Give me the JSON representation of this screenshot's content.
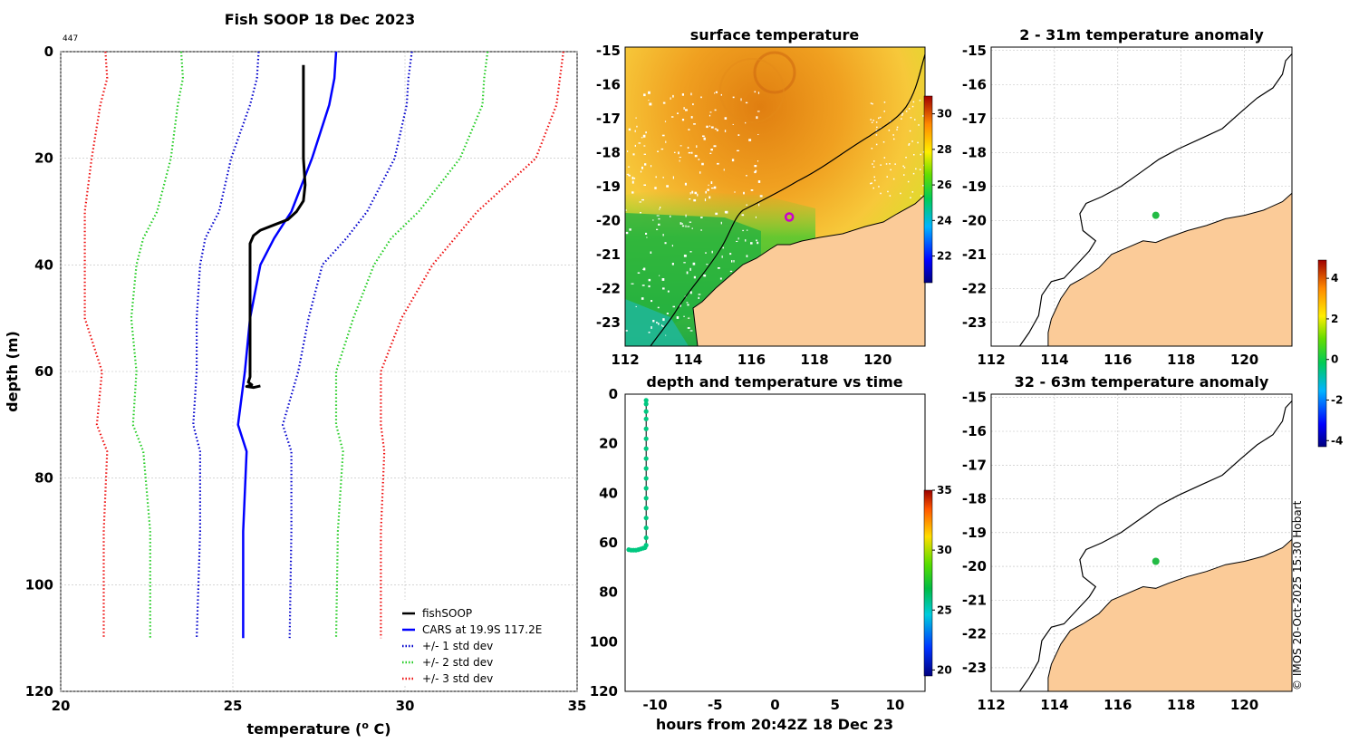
{
  "stamp": "© IMOS 20-Oct-2025 15:30 Hobart",
  "colors": {
    "obs": "#000000",
    "cars": "#0000ff",
    "sd1": "#0000cc",
    "sd2": "#22cc22",
    "sd3": "#ee1111",
    "land": "#fbcb98",
    "marker": "#cc00cc"
  },
  "chart_data": [
    {
      "id": "profile",
      "type": "line",
      "title": "Fish SOOP 18 Dec 2023",
      "corner_label": "447",
      "xlabel": "temperature (",
      "xlabel_sup": "o",
      "xlabel_end": " C)",
      "ylabel": "depth (m)",
      "xlim": [
        20,
        35
      ],
      "ylim": [
        0,
        120
      ],
      "y_reversed": true,
      "xticks": [
        20,
        25,
        30,
        35
      ],
      "yticks": [
        0,
        20,
        40,
        60,
        80,
        100,
        120
      ],
      "series": [
        {
          "name": "fishSOOP",
          "style": "solid",
          "color": "#000000",
          "width": 3,
          "points": [
            [
              27.05,
              2.5
            ],
            [
              27.05,
              10
            ],
            [
              27.05,
              20
            ],
            [
              27.1,
              25
            ],
            [
              27.05,
              28
            ],
            [
              26.85,
              30
            ],
            [
              26.6,
              31.5
            ],
            [
              26.2,
              32.5
            ],
            [
              25.8,
              33.5
            ],
            [
              25.6,
              34.5
            ],
            [
              25.5,
              36
            ],
            [
              25.5,
              40
            ],
            [
              25.5,
              50
            ],
            [
              25.5,
              61
            ],
            [
              25.45,
              62
            ],
            [
              25.55,
              62.5
            ],
            [
              25.4,
              62.8
            ],
            [
              25.6,
              63
            ],
            [
              25.8,
              62.7
            ]
          ]
        },
        {
          "name": "CARS at 19.9S 117.2E",
          "style": "solid",
          "color": "#0000ff",
          "width": 2.5,
          "points": [
            [
              28,
              0
            ],
            [
              27.95,
              5
            ],
            [
              27.8,
              10
            ],
            [
              27.3,
              20
            ],
            [
              26.7,
              30
            ],
            [
              26.2,
              35
            ],
            [
              25.8,
              40
            ],
            [
              25.5,
              50
            ],
            [
              25.35,
              60
            ],
            [
              25.15,
              70
            ],
            [
              25.4,
              75
            ],
            [
              25.3,
              90
            ],
            [
              25.3,
              110
            ]
          ]
        },
        {
          "name": "+/- 1 std dev",
          "style": "dotted",
          "color": "#0000cc",
          "width": 2.2,
          "points": [
            [
              25.75,
              0
            ],
            [
              25.7,
              5
            ],
            [
              25.5,
              10
            ],
            [
              24.95,
              20
            ],
            [
              24.6,
              30
            ],
            [
              24.2,
              35
            ],
            [
              24.05,
              40
            ],
            [
              23.95,
              50
            ],
            [
              23.95,
              60
            ],
            [
              23.85,
              70
            ],
            [
              24.05,
              75
            ],
            [
              24.05,
              90
            ],
            [
              23.95,
              110
            ]
          ]
        },
        {
          "name": "+/- 1 std dev",
          "style": "dotted",
          "color": "#0000cc",
          "width": 2.2,
          "points": [
            [
              30.2,
              0
            ],
            [
              30.1,
              5
            ],
            [
              30.05,
              10
            ],
            [
              29.7,
              20
            ],
            [
              28.9,
              30
            ],
            [
              28.3,
              35
            ],
            [
              27.6,
              40
            ],
            [
              27.2,
              50
            ],
            [
              26.9,
              60
            ],
            [
              26.45,
              70
            ],
            [
              26.7,
              75
            ],
            [
              26.7,
              90
            ],
            [
              26.65,
              110
            ]
          ]
        },
        {
          "name": "+/- 2 std dev",
          "style": "dotted",
          "color": "#22cc22",
          "width": 2.2,
          "points": [
            [
              23.5,
              0
            ],
            [
              23.55,
              5
            ],
            [
              23.4,
              10
            ],
            [
              23.2,
              20
            ],
            [
              22.8,
              30
            ],
            [
              22.4,
              35
            ],
            [
              22.2,
              40
            ],
            [
              22.05,
              50
            ],
            [
              22.2,
              60
            ],
            [
              22.1,
              70
            ],
            [
              22.4,
              75
            ],
            [
              22.6,
              90
            ],
            [
              22.6,
              110
            ]
          ]
        },
        {
          "name": "+/- 2 std dev",
          "style": "dotted",
          "color": "#22cc22",
          "width": 2.2,
          "points": [
            [
              32.4,
              0
            ],
            [
              32.3,
              5
            ],
            [
              32.25,
              10
            ],
            [
              31.6,
              20
            ],
            [
              30.4,
              30
            ],
            [
              29.6,
              35
            ],
            [
              29.1,
              40
            ],
            [
              28.5,
              50
            ],
            [
              28,
              60
            ],
            [
              28,
              70
            ],
            [
              28.2,
              75
            ],
            [
              28.05,
              90
            ],
            [
              28.0,
              110
            ]
          ]
        },
        {
          "name": "+/- 3 std dev",
          "style": "dotted",
          "color": "#ee1111",
          "width": 2.2,
          "points": [
            [
              21.3,
              0
            ],
            [
              21.35,
              5
            ],
            [
              21.15,
              10
            ],
            [
              20.9,
              20
            ],
            [
              20.7,
              30
            ],
            [
              20.7,
              40
            ],
            [
              20.7,
              50
            ],
            [
              21.2,
              60
            ],
            [
              21.05,
              70
            ],
            [
              21.35,
              75
            ],
            [
              21.25,
              90
            ],
            [
              21.25,
              110
            ]
          ]
        },
        {
          "name": "+/- 3 std dev",
          "style": "dotted",
          "color": "#ee1111",
          "width": 2.2,
          "points": [
            [
              34.6,
              0
            ],
            [
              34.5,
              5
            ],
            [
              34.4,
              10
            ],
            [
              33.8,
              20
            ],
            [
              32.1,
              30
            ],
            [
              30.8,
              40
            ],
            [
              29.9,
              50
            ],
            [
              29.3,
              60
            ],
            [
              29.3,
              70
            ],
            [
              29.4,
              75
            ],
            [
              29.3,
              90
            ],
            [
              29.3,
              110
            ]
          ]
        }
      ],
      "legend": [
        {
          "label": "fishSOOP",
          "color": "#000000",
          "style": "solid"
        },
        {
          "label": "CARS at 19.9S 117.2E",
          "color": "#0000ff",
          "style": "solid"
        },
        {
          "label": "+/- 1 std dev",
          "color": "#0000cc",
          "style": "dotted"
        },
        {
          "label": "+/- 2 std dev",
          "color": "#22cc22",
          "style": "dotted"
        },
        {
          "label": "+/- 3 std dev",
          "color": "#ee1111",
          "style": "dotted"
        }
      ],
      "legend_position": "bottom-right"
    },
    {
      "id": "sst",
      "type": "heatmap",
      "title": "surface temperature",
      "xlim": [
        112,
        121.5
      ],
      "ylim": [
        -23.7,
        -14.9
      ],
      "xticks": [
        112,
        114,
        116,
        118,
        120
      ],
      "yticks": [
        -15,
        -16,
        -17,
        -18,
        -19,
        -20,
        -21,
        -22,
        -23
      ],
      "colorbar": {
        "min": 20.5,
        "max": 31,
        "ticks": [
          22,
          24,
          26,
          28,
          30
        ]
      },
      "station": {
        "lon": 117.2,
        "lat": -19.9
      }
    },
    {
      "id": "time",
      "type": "scatter",
      "title": "depth and temperature vs time",
      "xlabel": "hours from 20:42Z 18 Dec 23",
      "xlim": [
        -12.5,
        12.5
      ],
      "ylim": [
        0,
        120
      ],
      "y_reversed": true,
      "xticks": [
        -10,
        -5,
        0,
        5,
        10
      ],
      "yticks": [
        0,
        20,
        40,
        60,
        80,
        100,
        120
      ],
      "colorbar": {
        "min": 19.5,
        "max": 35,
        "ticks": [
          20,
          25,
          30,
          35
        ]
      },
      "points": [
        [
          -12.2,
          62.8
        ],
        [
          -12.0,
          63
        ],
        [
          -11.8,
          63
        ],
        [
          -11.6,
          63
        ],
        [
          -11.4,
          62.8
        ],
        [
          -11.2,
          62.5
        ],
        [
          -11.0,
          62.2
        ],
        [
          -10.85,
          62
        ],
        [
          -10.75,
          61
        ],
        [
          -10.75,
          58
        ],
        [
          -10.75,
          54
        ],
        [
          -10.75,
          50
        ],
        [
          -10.75,
          46
        ],
        [
          -10.75,
          42
        ],
        [
          -10.75,
          38
        ],
        [
          -10.75,
          34
        ],
        [
          -10.75,
          30
        ],
        [
          -10.75,
          26
        ],
        [
          -10.75,
          22
        ],
        [
          -10.75,
          18
        ],
        [
          -10.75,
          14
        ],
        [
          -10.75,
          10
        ],
        [
          -10.75,
          7
        ],
        [
          -10.75,
          4
        ],
        [
          -10.75,
          2.5
        ]
      ]
    },
    {
      "id": "anom1",
      "type": "scatter",
      "title": "2 - 31m temperature anomaly",
      "xlim": [
        112,
        121.5
      ],
      "ylim": [
        -23.7,
        -14.9
      ],
      "xticks": [
        112,
        114,
        116,
        118,
        120
      ],
      "yticks": [
        -15,
        -16,
        -17,
        -18,
        -19,
        -20,
        -21,
        -22,
        -23
      ],
      "station": {
        "lon": 117.2,
        "lat": -19.85
      }
    },
    {
      "id": "anom2",
      "type": "scatter",
      "title": "32 - 63m temperature anomaly",
      "xlim": [
        112,
        121.5
      ],
      "ylim": [
        -23.7,
        -14.9
      ],
      "xticks": [
        112,
        114,
        116,
        118,
        120
      ],
      "yticks": [
        -15,
        -16,
        -17,
        -18,
        -19,
        -20,
        -21,
        -22,
        -23
      ],
      "station": {
        "lon": 117.2,
        "lat": -19.85
      }
    },
    {
      "id": "anom_colorbar",
      "type": "heatmap",
      "colorbar": {
        "min": -4.3,
        "max": 4.9,
        "ticks": [
          -4,
          -2,
          0,
          2,
          4
        ]
      }
    }
  ]
}
